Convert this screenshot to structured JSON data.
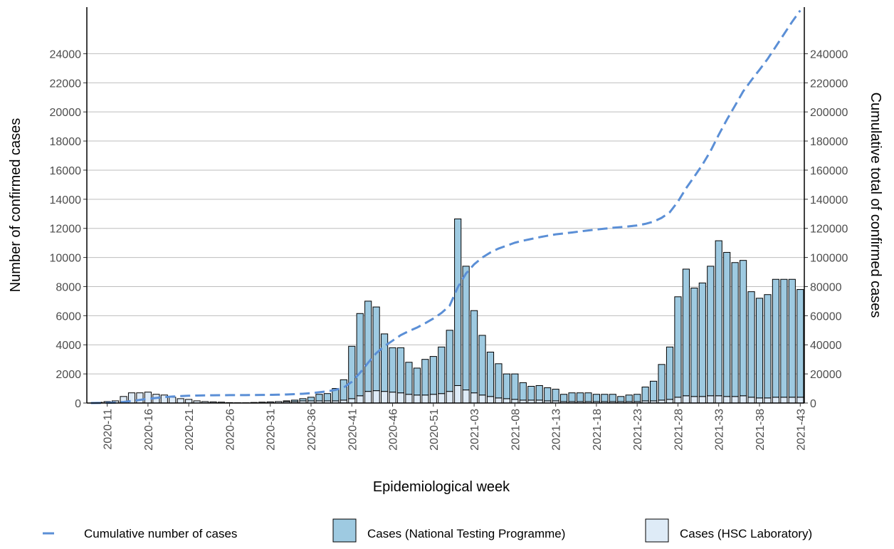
{
  "chart_data": {
    "type": "bar",
    "x_label": "Epidemiological week",
    "y_label": "Number of confirmed cases",
    "y2_label": "Cumulative total of confirmed cases",
    "categories": [
      null,
      null,
      "2020-11",
      null,
      null,
      null,
      null,
      "2020-16",
      null,
      null,
      null,
      null,
      "2020-21",
      null,
      null,
      null,
      null,
      "2020-26",
      null,
      null,
      null,
      null,
      "2020-31",
      null,
      null,
      null,
      null,
      "2020-36",
      null,
      null,
      null,
      null,
      "2020-41",
      null,
      null,
      null,
      null,
      "2020-46",
      null,
      null,
      null,
      null,
      "2020-51",
      null,
      null,
      null,
      null,
      "2021-03",
      null,
      null,
      null,
      null,
      "2021-08",
      null,
      null,
      null,
      null,
      "2021-13",
      null,
      null,
      null,
      null,
      "2021-18",
      null,
      null,
      null,
      null,
      "2021-23",
      null,
      null,
      null,
      null,
      "2021-28",
      null,
      null,
      null,
      null,
      "2021-33",
      null,
      null,
      null,
      null,
      "2021-38",
      null,
      null,
      null,
      null,
      "2021-43"
    ],
    "series": [
      {
        "name": "Cases (HSC Laboratory)",
        "type": "bar",
        "color": "#deebf7",
        "values": [
          0,
          50,
          100,
          150,
          450,
          700,
          700,
          750,
          600,
          550,
          400,
          300,
          250,
          150,
          100,
          80,
          60,
          30,
          20,
          20,
          40,
          60,
          80,
          100,
          100,
          100,
          150,
          150,
          150,
          150,
          150,
          200,
          300,
          500,
          800,
          850,
          800,
          750,
          700,
          600,
          550,
          550,
          600,
          650,
          800,
          1200,
          900,
          700,
          550,
          450,
          350,
          300,
          250,
          200,
          200,
          200,
          150,
          150,
          100,
          100,
          100,
          100,
          100,
          100,
          100,
          100,
          100,
          100,
          150,
          150,
          200,
          250,
          400,
          500,
          450,
          450,
          500,
          500,
          450,
          450,
          500,
          400,
          350,
          350,
          400,
          400,
          400,
          400
        ]
      },
      {
        "name": "Cases (National Testing Programme)",
        "type": "bar",
        "color": "#9ecae1",
        "values": [
          0,
          0,
          0,
          0,
          0,
          0,
          0,
          0,
          0,
          0,
          0,
          0,
          0,
          0,
          0,
          0,
          0,
          0,
          0,
          0,
          0,
          0,
          0,
          0,
          50,
          100,
          150,
          250,
          450,
          500,
          850,
          1400,
          3600,
          5650,
          6200,
          5750,
          3950,
          3050,
          3100,
          2200,
          1850,
          2450,
          2600,
          3200,
          4200,
          11450,
          8500,
          5650,
          4100,
          3050,
          2350,
          1700,
          1750,
          1200,
          950,
          1000,
          900,
          800,
          500,
          600,
          600,
          600,
          500,
          500,
          500,
          350,
          450,
          500,
          950,
          1350,
          2450,
          3600,
          6900,
          8700,
          7450,
          7800,
          8900,
          10650,
          9900,
          9200,
          9300,
          7250,
          6850,
          7100,
          8100,
          8100,
          8100,
          7400
        ]
      },
      {
        "name": "Cumulative number of cases",
        "type": "line",
        "axis": "y2",
        "color": "#5b8fd6",
        "values": [
          0,
          50,
          150,
          300,
          750,
          1450,
          2150,
          2900,
          3500,
          4050,
          4450,
          4750,
          5000,
          5150,
          5250,
          5330,
          5390,
          5420,
          5440,
          5460,
          5500,
          5560,
          5640,
          5740,
          5890,
          6090,
          6390,
          6790,
          7390,
          8040,
          9040,
          10640,
          14540,
          20690,
          27690,
          34290,
          39040,
          42840,
          46640,
          49440,
          51840,
          54840,
          58040,
          61890,
          66890,
          79540,
          88940,
          95290,
          99940,
          103440,
          106140,
          108140,
          110140,
          111540,
          112690,
          113890,
          114940,
          115890,
          116490,
          117190,
          117890,
          118590,
          119190,
          119790,
          120390,
          120840,
          121390,
          121990,
          123090,
          124590,
          127240,
          131090,
          138390,
          147590,
          155490,
          163740,
          173140,
          184290,
          194640,
          204290,
          214090,
          221740,
          228940,
          236390,
          244890,
          253390,
          261890,
          269690
        ]
      }
    ],
    "ylim": [
      0,
      27200
    ],
    "yticks": [
      0,
      2000,
      4000,
      6000,
      8000,
      10000,
      12000,
      14000,
      16000,
      18000,
      20000,
      22000,
      24000
    ],
    "y2lim": [
      0,
      272000
    ],
    "y2ticks": [
      0,
      20000,
      40000,
      60000,
      80000,
      100000,
      120000,
      140000,
      160000,
      180000,
      200000,
      220000,
      240000
    ],
    "grid": true,
    "legend": "bottom"
  }
}
